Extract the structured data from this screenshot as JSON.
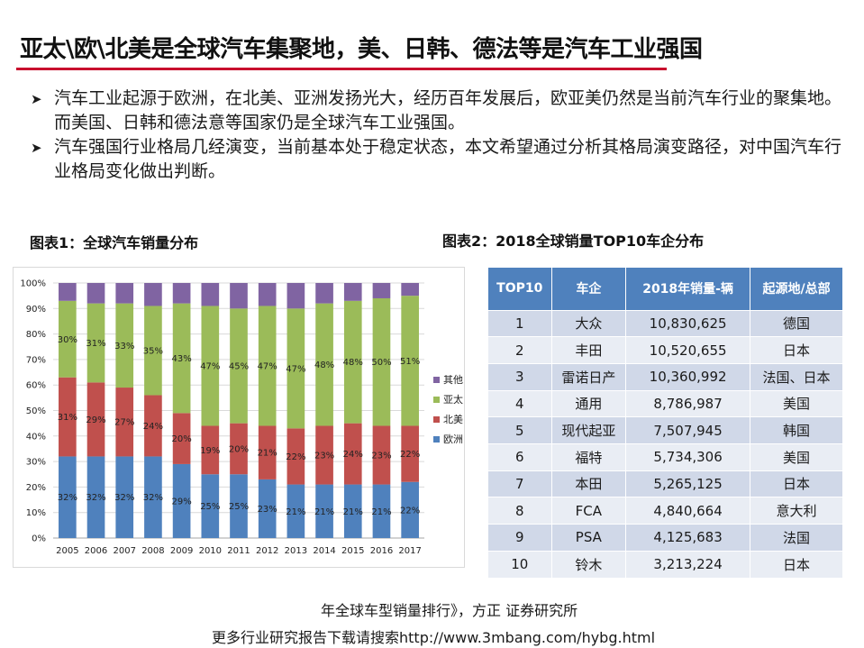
{
  "title": "亚太\\欧\\北美是全球汽车集聚地，美、日韩、德法等是汽车工业强国",
  "bullets": [
    "汽车工业起源于欧洲，在北美、亚洲发扬光大，经历百年发展后，欧亚美仍然是当前汽车行业的聚集地。而美国、日韩和德法意等国家仍是全球汽车工业强国。",
    "汽车强国行业格局几经演变，当前基本处于稳定状态，本文希望通过分析其格局演变路径，对中国汽车行业格局变化做出判断。"
  ],
  "chart_caption": "图表1：全球汽车销量分布",
  "table_caption": "图表2：2018全球销量TOP10车企分布",
  "chart_data": {
    "type": "bar",
    "stacked": true,
    "percent": true,
    "categories": [
      "2005",
      "2006",
      "2007",
      "2008",
      "2009",
      "2010",
      "2011",
      "2012",
      "2013",
      "2014",
      "2015",
      "2016",
      "2017"
    ],
    "series": [
      {
        "name": "欧洲",
        "color": "#4f81bd",
        "values": [
          32,
          32,
          32,
          32,
          29,
          25,
          25,
          23,
          21,
          21,
          21,
          21,
          22
        ],
        "labels": [
          "32%",
          "32%",
          "32%",
          "32%",
          "29%",
          "25%",
          "25%",
          "23%",
          "21%",
          "21%",
          "21%",
          "21%",
          "22%"
        ]
      },
      {
        "name": "北美",
        "color": "#c0504d",
        "values": [
          31,
          29,
          27,
          24,
          20,
          19,
          20,
          21,
          22,
          23,
          24,
          23,
          22
        ],
        "labels": [
          "31%",
          "29%",
          "27%",
          "24%",
          "20%",
          "19%",
          "20%",
          "21%",
          "22%",
          "23%",
          "24%",
          "23%",
          "22%"
        ]
      },
      {
        "name": "亚太",
        "color": "#9bbb59",
        "values": [
          30,
          31,
          33,
          35,
          43,
          47,
          45,
          47,
          47,
          48,
          48,
          50,
          51
        ],
        "labels": [
          "30%",
          "31%",
          "33%",
          "35%",
          "43%",
          "47%",
          "45%",
          "47%",
          "47%",
          "48%",
          "48%",
          "50%",
          "51%"
        ]
      },
      {
        "name": "其他",
        "color": "#8064a2",
        "values": [
          7,
          8,
          8,
          9,
          8,
          9,
          10,
          9,
          10,
          8,
          7,
          6,
          5
        ]
      }
    ],
    "ylim": [
      0,
      100
    ],
    "yticks": [
      "0%",
      "10%",
      "20%",
      "30%",
      "40%",
      "50%",
      "60%",
      "70%",
      "80%",
      "90%",
      "100%"
    ],
    "grid": true,
    "legend": "right",
    "legend_order": [
      "其他",
      "亚太",
      "北美",
      "欧洲"
    ]
  },
  "table": {
    "headers": [
      "TOP10",
      "车企",
      "2018年销量-辆",
      "起源地/总部"
    ],
    "rows": [
      [
        "1",
        "大众",
        "10,830,625",
        "德国"
      ],
      [
        "2",
        "丰田",
        "10,520,655",
        "日本"
      ],
      [
        "3",
        "雷诺日产",
        "10,360,992",
        "法国、日本"
      ],
      [
        "4",
        "通用",
        "8,786,987",
        "美国"
      ],
      [
        "5",
        "现代起亚",
        "7,507,945",
        "韩国"
      ],
      [
        "6",
        "福特",
        "5,734,306",
        "美国"
      ],
      [
        "7",
        "本田",
        "5,265,125",
        "日本"
      ],
      [
        "8",
        "FCA",
        "4,840,664",
        "意大利"
      ],
      [
        "9",
        "PSA",
        "4,125,683",
        "法国"
      ],
      [
        "10",
        "铃木",
        "3,213,224",
        "日本"
      ]
    ]
  },
  "source": "年全球车型销量排行》，方正 证券研究所",
  "footer": "更多行业研究报告下载请搜索http://www.3mbang.com/hybg.html",
  "colors": {
    "title_rule": "#c8102e",
    "table_header": "#4f81bd"
  }
}
